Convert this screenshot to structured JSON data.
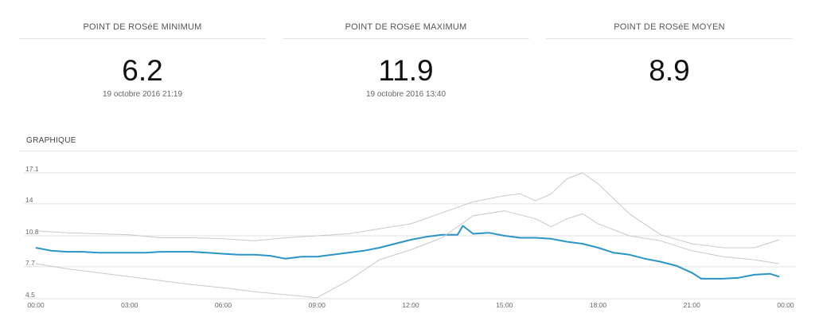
{
  "stats": {
    "min": {
      "label": "POINT DE ROSéE MINIMUM",
      "value": "6.2",
      "date": "19 octobre 2016 21:19"
    },
    "max": {
      "label": "POINT DE ROSéE MAXIMUM",
      "value": "11.9",
      "date": "19 octobre 2016 13:40"
    },
    "avg": {
      "label": "POINT DE ROSéE MOYEN",
      "value": "8.9",
      "date": ""
    }
  },
  "section_title": "GRAPHIQUE",
  "colors": {
    "main_series": "#2a94c8",
    "envelope": "#c8c8c8",
    "grid": "#e0e0e0"
  },
  "chart_data": {
    "type": "line",
    "title": "",
    "xlabel": "",
    "ylabel": "",
    "x_ticks": [
      "00:00",
      "03:00",
      "06:00",
      "09:00",
      "12:00",
      "15:00",
      "18:00",
      "21:00",
      "00:00"
    ],
    "y_ticks": [
      "4.5",
      "7.7",
      "10.8",
      "14",
      "17.1"
    ],
    "xlim": [
      0,
      24
    ],
    "ylim": [
      4.5,
      17.1
    ],
    "grid": true,
    "legend": "none",
    "series": [
      {
        "role": "main",
        "x": [
          0,
          0.5,
          1,
          1.5,
          2,
          2.5,
          3,
          3.5,
          4,
          4.5,
          5,
          5.5,
          6,
          6.5,
          7,
          7.5,
          8,
          8.5,
          9,
          9.5,
          10,
          10.5,
          11,
          11.5,
          12,
          12.5,
          13,
          13.5,
          13.67,
          14,
          14.5,
          15,
          15.5,
          16,
          16.5,
          17,
          17.5,
          18,
          18.5,
          19,
          19.5,
          20,
          20.5,
          21,
          21.3,
          22,
          22.5,
          23,
          23.5,
          23.8
        ],
        "y": [
          9.6,
          9.3,
          9.2,
          9.2,
          9.1,
          9.1,
          9.1,
          9.1,
          9.2,
          9.2,
          9.2,
          9.1,
          9.0,
          8.9,
          8.9,
          8.8,
          8.5,
          8.7,
          8.7,
          8.9,
          9.1,
          9.3,
          9.6,
          10.0,
          10.4,
          10.7,
          10.9,
          10.9,
          11.8,
          11.0,
          11.1,
          10.8,
          10.6,
          10.6,
          10.5,
          10.2,
          10.0,
          9.6,
          9.1,
          8.9,
          8.5,
          8.2,
          7.8,
          7.1,
          6.5,
          6.5,
          6.6,
          6.9,
          7.0,
          6.7
        ]
      },
      {
        "role": "upper",
        "x": [
          0,
          1,
          2,
          3,
          4,
          5,
          6,
          7,
          8,
          9,
          10,
          11,
          12,
          13,
          14,
          15,
          15.5,
          16,
          16.5,
          17,
          17.5,
          18,
          19,
          20,
          21,
          22,
          23,
          23.8
        ],
        "y": [
          11.3,
          11.1,
          11.0,
          10.9,
          10.6,
          10.6,
          10.5,
          10.3,
          10.6,
          10.8,
          11.0,
          11.5,
          12.0,
          13.1,
          14.2,
          14.8,
          15.0,
          14.3,
          15.0,
          16.5,
          17.1,
          16.0,
          13.0,
          10.9,
          10.0,
          9.6,
          9.6,
          10.4
        ]
      },
      {
        "role": "lower",
        "x": [
          0,
          1,
          2,
          3,
          4,
          5,
          6,
          7,
          8,
          9,
          10,
          11,
          12,
          13,
          14,
          15,
          16,
          16.5,
          17,
          17.5,
          18,
          19,
          20,
          21,
          22,
          23,
          23.8
        ],
        "y": [
          8.0,
          7.5,
          7.1,
          6.7,
          6.3,
          5.9,
          5.6,
          5.2,
          4.9,
          4.6,
          6.3,
          8.4,
          9.4,
          10.6,
          12.8,
          13.3,
          12.5,
          11.7,
          12.5,
          13.0,
          12.0,
          10.8,
          10.3,
          9.3,
          8.7,
          8.4,
          8.0
        ]
      }
    ]
  }
}
